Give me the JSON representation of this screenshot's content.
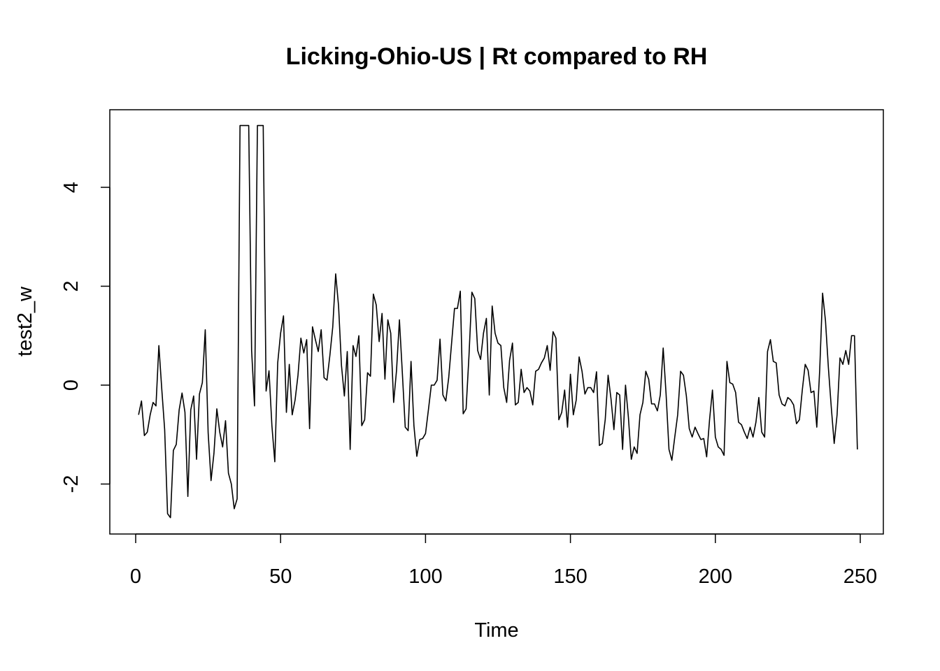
{
  "chart_data": {
    "type": "line",
    "title": "Licking-Ohio-US | Rt compared to RH",
    "xlabel": "Time",
    "ylabel": "test2_w",
    "xlim": [
      -8,
      258
    ],
    "ylim": [
      -3,
      5.6
    ],
    "x_ticks": [
      0,
      50,
      100,
      150,
      200,
      250
    ],
    "y_ticks": [
      -2,
      0,
      2,
      4
    ],
    "x_start": 1,
    "grid": false,
    "legend": "none",
    "line_color": "#000000",
    "values": [
      -0.6,
      -0.32,
      -1.02,
      -0.95,
      -0.6,
      -0.35,
      -0.42,
      0.8,
      -0.08,
      -0.9,
      -2.6,
      -2.68,
      -1.32,
      -1.2,
      -0.5,
      -0.16,
      -0.55,
      -2.25,
      -0.5,
      -0.22,
      -1.5,
      -0.18,
      0.05,
      1.12,
      -0.96,
      -1.93,
      -1.38,
      -0.48,
      -0.95,
      -1.25,
      -0.72,
      -1.78,
      -2.0,
      -2.5,
      -2.3,
      5.25,
      5.25,
      5.25,
      5.25,
      0.7,
      -0.42,
      5.25,
      5.25,
      5.25,
      -0.12,
      0.29,
      -0.82,
      -1.55,
      0.45,
      1.05,
      1.4,
      -0.55,
      0.42,
      -0.6,
      -0.3,
      0.2,
      0.95,
      0.65,
      0.92,
      -0.88,
      1.18,
      0.92,
      0.68,
      1.12,
      0.15,
      0.1,
      0.6,
      1.18,
      2.25,
      1.6,
      0.4,
      -0.22,
      0.68,
      -1.3,
      0.8,
      0.58,
      1.0,
      -0.82,
      -0.7,
      0.25,
      0.18,
      1.84,
      1.62,
      0.88,
      1.45,
      0.12,
      1.32,
      1.05,
      -0.35,
      0.3,
      1.32,
      0.25,
      -0.85,
      -0.92,
      0.48,
      -0.82,
      -1.44,
      -1.1,
      -1.08,
      -0.98,
      -0.5,
      0.0,
      0.0,
      0.1,
      0.93,
      -0.2,
      -0.32,
      0.15,
      0.85,
      1.55,
      1.55,
      1.9,
      -0.58,
      -0.48,
      0.6,
      1.88,
      1.75,
      0.7,
      0.52,
      1.05,
      1.35,
      -0.2,
      1.6,
      1.05,
      0.85,
      0.8,
      -0.05,
      -0.35,
      0.5,
      0.85,
      -0.4,
      -0.35,
      0.32,
      -0.15,
      -0.05,
      -0.12,
      -0.4,
      0.28,
      0.32,
      0.45,
      0.55,
      0.8,
      0.3,
      1.08,
      0.95,
      -0.7,
      -0.55,
      -0.1,
      -0.85,
      0.22,
      -0.6,
      -0.3,
      0.57,
      0.28,
      -0.18,
      -0.05,
      -0.05,
      -0.15,
      0.27,
      -1.22,
      -1.18,
      -0.7,
      0.2,
      -0.28,
      -0.9,
      -0.15,
      -0.2,
      -1.3,
      0.0,
      -0.65,
      -1.5,
      -1.25,
      -1.38,
      -0.6,
      -0.35,
      0.28,
      0.12,
      -0.38,
      -0.38,
      -0.52,
      -0.2,
      0.75,
      -0.18,
      -1.3,
      -1.52,
      -1.05,
      -0.6,
      0.28,
      0.2,
      -0.22,
      -0.88,
      -1.05,
      -0.85,
      -0.98,
      -1.1,
      -1.08,
      -1.45,
      -0.7,
      -0.1,
      -1.05,
      -1.25,
      -1.3,
      -1.42,
      0.48,
      0.05,
      0.02,
      -0.15,
      -0.75,
      -0.8,
      -0.95,
      -1.08,
      -0.85,
      -1.05,
      -0.75,
      -0.25,
      -0.95,
      -1.05,
      0.68,
      0.92,
      0.48,
      0.45,
      -0.2,
      -0.38,
      -0.42,
      -0.25,
      -0.3,
      -0.4,
      -0.78,
      -0.7,
      -0.1,
      0.42,
      0.3,
      -0.15,
      -0.12,
      -0.85,
      0.3,
      1.86,
      1.3,
      0.35,
      -0.45,
      -1.18,
      -0.6,
      0.55,
      0.42,
      0.7,
      0.42,
      1.0,
      1.0,
      -1.3
    ]
  }
}
